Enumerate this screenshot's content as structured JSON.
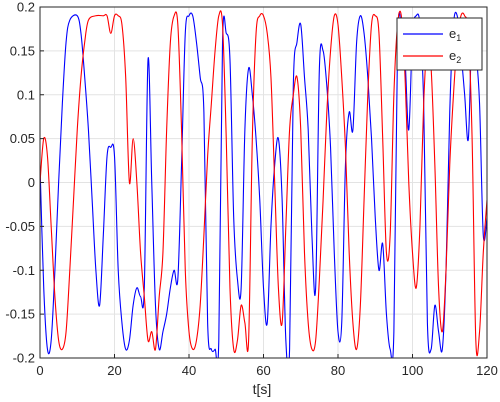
{
  "chart_data": {
    "type": "line",
    "title": "",
    "xlabel": "t[s]",
    "ylabel": "",
    "xlim": [
      0,
      120
    ],
    "ylim": [
      -0.2,
      0.2
    ],
    "grid": true,
    "legend_position": "top-right",
    "x_ticks": [
      "0",
      "20",
      "40",
      "60",
      "80",
      "100",
      "120"
    ],
    "y_ticks": [
      "-0.2",
      "-0.15",
      "-0.1",
      "-0.05",
      "0",
      "0.05",
      "0.1",
      "0.15",
      "0.2"
    ],
    "series": [
      {
        "name": "e1",
        "label_main": "e",
        "label_sub": "1",
        "color": "#0000ff",
        "points": [
          [
            0,
            0.02
          ],
          [
            1,
            -0.12
          ],
          [
            2,
            -0.19
          ],
          [
            3,
            -0.18
          ],
          [
            4,
            -0.1
          ],
          [
            5,
            0.0
          ],
          [
            6,
            0.09
          ],
          [
            7,
            0.16
          ],
          [
            8,
            0.185
          ],
          [
            10,
            0.19
          ],
          [
            11,
            0.17
          ],
          [
            12,
            0.12
          ],
          [
            13,
            0.06
          ],
          [
            14,
            -0.02
          ],
          [
            15,
            -0.1
          ],
          [
            16,
            -0.14
          ],
          [
            17,
            -0.06
          ],
          [
            18,
            0.03
          ],
          [
            19,
            0.04
          ],
          [
            20,
            0.03
          ],
          [
            21,
            -0.1
          ],
          [
            22,
            -0.16
          ],
          [
            23,
            -0.19
          ],
          [
            24,
            -0.18
          ],
          [
            25,
            -0.14
          ],
          [
            26,
            -0.12
          ],
          [
            27,
            -0.13
          ],
          [
            28,
            -0.12
          ],
          [
            29,
            0.14
          ],
          [
            30,
            0.0
          ],
          [
            31,
            -0.14
          ],
          [
            32,
            -0.19
          ],
          [
            33,
            -0.17
          ],
          [
            34,
            -0.15
          ],
          [
            35,
            -0.12
          ],
          [
            36,
            -0.1
          ],
          [
            37,
            -0.11
          ],
          [
            38,
            0.02
          ],
          [
            39,
            0.17
          ],
          [
            40,
            0.19
          ],
          [
            41,
            0.19
          ],
          [
            42,
            0.16
          ],
          [
            43,
            0.12
          ],
          [
            44,
            0.08
          ],
          [
            45,
            -0.16
          ],
          [
            46,
            -0.19
          ],
          [
            47,
            -0.19
          ],
          [
            48,
            -0.18
          ],
          [
            49,
            0.16
          ],
          [
            50,
            0.17
          ],
          [
            51,
            0.14
          ],
          [
            52,
            -0.04
          ],
          [
            53,
            -0.11
          ],
          [
            54,
            -0.12
          ],
          [
            55,
            0.06
          ],
          [
            56,
            0.13
          ],
          [
            57,
            0.1
          ],
          [
            58,
            0.05
          ],
          [
            59,
            -0.02
          ],
          [
            60,
            -0.12
          ],
          [
            61,
            -0.16
          ],
          [
            62,
            -0.05
          ],
          [
            63,
            0.02
          ],
          [
            64,
            0.05
          ],
          [
            65,
            -0.02
          ],
          [
            66,
            -0.18
          ],
          [
            67,
            -0.19
          ],
          [
            68,
            0.11
          ],
          [
            69,
            0.16
          ],
          [
            70,
            0.18
          ],
          [
            71,
            0.12
          ],
          [
            72,
            0.06
          ],
          [
            73,
            -0.06
          ],
          [
            74,
            -0.12
          ],
          [
            75,
            0.13
          ],
          [
            76,
            0.15
          ],
          [
            77,
            0.11
          ],
          [
            78,
            0.04
          ],
          [
            79,
            -0.08
          ],
          [
            80,
            -0.17
          ],
          [
            81,
            -0.16
          ],
          [
            82,
            0.02
          ],
          [
            83,
            0.08
          ],
          [
            84,
            0.06
          ],
          [
            85,
            0.16
          ],
          [
            86,
            0.19
          ],
          [
            87,
            0.17
          ],
          [
            88,
            0.12
          ],
          [
            89,
            0.05
          ],
          [
            90,
            -0.04
          ],
          [
            91,
            -0.1
          ],
          [
            92,
            -0.07
          ],
          [
            93,
            -0.15
          ],
          [
            94,
            -0.19
          ],
          [
            95,
            -0.17
          ],
          [
            96,
            0.16
          ],
          [
            97,
            0.18
          ],
          [
            98,
            0.14
          ],
          [
            99,
            0.06
          ],
          [
            100,
            0.17
          ],
          [
            101,
            0.19
          ],
          [
            102,
            0.18
          ],
          [
            103,
            0.09
          ],
          [
            104,
            -0.16
          ],
          [
            105,
            -0.19
          ],
          [
            106,
            -0.14
          ],
          [
            107,
            -0.17
          ],
          [
            108,
            -0.19
          ],
          [
            109,
            -0.1
          ],
          [
            110,
            0.08
          ],
          [
            111,
            0.18
          ],
          [
            112,
            0.19
          ],
          [
            113,
            0.15
          ],
          [
            114,
            0.1
          ],
          [
            115,
            0.05
          ],
          [
            116,
            0.18
          ],
          [
            117,
            0.15
          ],
          [
            118,
            0.09
          ],
          [
            119,
            -0.06
          ],
          [
            120,
            -0.04
          ]
        ]
      },
      {
        "name": "e2",
        "label_main": "e",
        "label_sub": "2",
        "color": "#ff0000",
        "points": [
          [
            0,
            0.0
          ],
          [
            1,
            0.05
          ],
          [
            2,
            0.03
          ],
          [
            3,
            -0.05
          ],
          [
            4,
            -0.13
          ],
          [
            5,
            -0.18
          ],
          [
            6,
            -0.19
          ],
          [
            7,
            -0.17
          ],
          [
            8,
            -0.1
          ],
          [
            9,
            -0.02
          ],
          [
            10,
            0.06
          ],
          [
            11,
            0.12
          ],
          [
            12,
            0.16
          ],
          [
            13,
            0.185
          ],
          [
            15,
            0.19
          ],
          [
            17,
            0.19
          ],
          [
            18,
            0.19
          ],
          [
            19,
            0.17
          ],
          [
            20,
            0.19
          ],
          [
            21,
            0.19
          ],
          [
            22,
            0.18
          ],
          [
            23,
            0.12
          ],
          [
            24,
            0.0
          ],
          [
            25,
            0.05
          ],
          [
            26,
            0.0
          ],
          [
            27,
            -0.08
          ],
          [
            28,
            -0.13
          ],
          [
            29,
            -0.18
          ],
          [
            30,
            -0.17
          ],
          [
            31,
            -0.19
          ],
          [
            32,
            -0.13
          ],
          [
            33,
            -0.08
          ],
          [
            34,
            0.06
          ],
          [
            35,
            0.16
          ],
          [
            36,
            0.19
          ],
          [
            37,
            0.18
          ],
          [
            38,
            0.06
          ],
          [
            39,
            -0.1
          ],
          [
            40,
            -0.17
          ],
          [
            41,
            -0.19
          ],
          [
            42,
            -0.18
          ],
          [
            43,
            -0.14
          ],
          [
            44,
            -0.06
          ],
          [
            45,
            0.03
          ],
          [
            46,
            0.09
          ],
          [
            47,
            0.15
          ],
          [
            48,
            0.19
          ],
          [
            49,
            0.18
          ],
          [
            50,
            0.05
          ],
          [
            51,
            -0.12
          ],
          [
            52,
            -0.19
          ],
          [
            53,
            -0.18
          ],
          [
            54,
            -0.14
          ],
          [
            55,
            -0.16
          ],
          [
            56,
            -0.18
          ],
          [
            57,
            0.05
          ],
          [
            58,
            0.17
          ],
          [
            59,
            0.19
          ],
          [
            60,
            0.19
          ],
          [
            61,
            0.17
          ],
          [
            62,
            0.12
          ],
          [
            63,
            0.0
          ],
          [
            64,
            -0.12
          ],
          [
            65,
            -0.16
          ],
          [
            66,
            -0.05
          ],
          [
            67,
            0.06
          ],
          [
            68,
            0.1
          ],
          [
            69,
            0.12
          ],
          [
            70,
            0.06
          ],
          [
            71,
            -0.08
          ],
          [
            72,
            -0.16
          ],
          [
            73,
            -0.19
          ],
          [
            74,
            -0.18
          ],
          [
            75,
            -0.11
          ],
          [
            76,
            -0.02
          ],
          [
            77,
            0.08
          ],
          [
            78,
            0.15
          ],
          [
            79,
            0.19
          ],
          [
            80,
            0.18
          ],
          [
            81,
            0.12
          ],
          [
            82,
            0.04
          ],
          [
            83,
            -0.08
          ],
          [
            84,
            -0.16
          ],
          [
            85,
            -0.19
          ],
          [
            86,
            -0.14
          ],
          [
            87,
            -0.02
          ],
          [
            88,
            0.1
          ],
          [
            89,
            0.18
          ],
          [
            90,
            0.19
          ],
          [
            91,
            0.17
          ],
          [
            92,
            0.05
          ],
          [
            93,
            -0.08
          ],
          [
            94,
            -0.06
          ],
          [
            95,
            0.1
          ],
          [
            96,
            0.18
          ],
          [
            97,
            0.19
          ],
          [
            98,
            0.12
          ],
          [
            99,
            0.0
          ],
          [
            100,
            -0.08
          ],
          [
            101,
            -0.12
          ],
          [
            102,
            -0.05
          ],
          [
            103,
            0.09
          ],
          [
            104,
            0.16
          ],
          [
            105,
            0.13
          ],
          [
            106,
            0.02
          ],
          [
            107,
            -0.12
          ],
          [
            108,
            -0.17
          ],
          [
            109,
            -0.1
          ],
          [
            110,
            0.02
          ],
          [
            111,
            0.1
          ],
          [
            112,
            0.16
          ],
          [
            113,
            0.19
          ],
          [
            114,
            0.19
          ],
          [
            115,
            0.17
          ],
          [
            116,
            0.05
          ],
          [
            117,
            -0.18
          ],
          [
            118,
            -0.17
          ],
          [
            119,
            -0.08
          ],
          [
            120,
            -0.02
          ]
        ]
      }
    ]
  }
}
